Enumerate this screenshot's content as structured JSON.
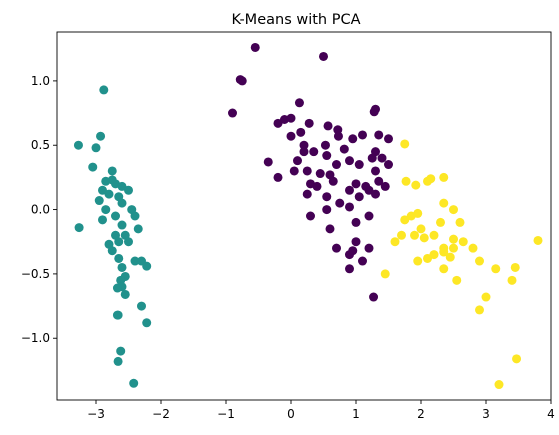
{
  "chart_data": {
    "type": "scatter",
    "title": "K-Means with PCA",
    "xlabel": "",
    "ylabel": "",
    "xlim": [
      -3.6,
      4.0
    ],
    "ylim": [
      -1.48,
      1.38
    ],
    "grid": false,
    "legend": "none",
    "x_ticks": [
      {
        "value": -3,
        "label": "−3"
      },
      {
        "value": -2,
        "label": "−2"
      },
      {
        "value": -1,
        "label": "−1"
      },
      {
        "value": 0,
        "label": "0"
      },
      {
        "value": 1,
        "label": "1"
      },
      {
        "value": 2,
        "label": "2"
      },
      {
        "value": 3,
        "label": "3"
      },
      {
        "value": 4,
        "label": "4"
      }
    ],
    "y_ticks": [
      {
        "value": -1.0,
        "label": "−1.0"
      },
      {
        "value": -0.5,
        "label": "−0.5"
      },
      {
        "value": 0.0,
        "label": "0.0"
      },
      {
        "value": 0.5,
        "label": "0.5"
      },
      {
        "value": 1.0,
        "label": "1.0"
      }
    ],
    "series": [
      {
        "color": "#440154",
        "points": [
          [
            -0.55,
            1.26
          ],
          [
            -0.78,
            1.01
          ],
          [
            -0.75,
            1.0
          ],
          [
            0.5,
            1.19
          ],
          [
            -0.9,
            0.75
          ],
          [
            0.13,
            0.83
          ],
          [
            -0.2,
            0.67
          ],
          [
            -0.1,
            0.7
          ],
          [
            0.0,
            0.71
          ],
          [
            0.28,
            0.67
          ],
          [
            0.57,
            0.65
          ],
          [
            0.72,
            0.62
          ],
          [
            0.73,
            0.57
          ],
          [
            1.3,
            0.78
          ],
          [
            1.28,
            0.76
          ],
          [
            0.95,
            0.55
          ],
          [
            1.1,
            0.58
          ],
          [
            1.35,
            0.58
          ],
          [
            1.5,
            0.55
          ],
          [
            0.0,
            0.57
          ],
          [
            0.15,
            0.6
          ],
          [
            0.2,
            0.5
          ],
          [
            0.53,
            0.5
          ],
          [
            0.82,
            0.47
          ],
          [
            0.35,
            0.45
          ],
          [
            0.55,
            0.42
          ],
          [
            -0.35,
            0.37
          ],
          [
            0.1,
            0.38
          ],
          [
            0.2,
            0.45
          ],
          [
            1.3,
            0.45
          ],
          [
            1.4,
            0.4
          ],
          [
            0.7,
            0.35
          ],
          [
            0.9,
            0.38
          ],
          [
            1.05,
            0.35
          ],
          [
            1.25,
            0.4
          ],
          [
            0.05,
            0.3
          ],
          [
            0.25,
            0.3
          ],
          [
            0.45,
            0.28
          ],
          [
            0.6,
            0.27
          ],
          [
            1.3,
            0.3
          ],
          [
            1.5,
            0.35
          ],
          [
            -0.2,
            0.25
          ],
          [
            0.3,
            0.2
          ],
          [
            0.4,
            0.18
          ],
          [
            0.65,
            0.22
          ],
          [
            0.9,
            0.15
          ],
          [
            1.0,
            0.2
          ],
          [
            1.2,
            0.15
          ],
          [
            1.35,
            0.22
          ],
          [
            1.45,
            0.18
          ],
          [
            0.25,
            0.12
          ],
          [
            0.55,
            0.1
          ],
          [
            0.75,
            0.05
          ],
          [
            1.05,
            0.1
          ],
          [
            1.3,
            0.12
          ],
          [
            1.15,
            0.18
          ],
          [
            0.3,
            -0.05
          ],
          [
            0.55,
            0.0
          ],
          [
            0.9,
            0.02
          ],
          [
            1.0,
            -0.1
          ],
          [
            1.2,
            -0.05
          ],
          [
            0.6,
            -0.15
          ],
          [
            1.0,
            -0.25
          ],
          [
            0.7,
            -0.3
          ],
          [
            1.2,
            -0.3
          ],
          [
            0.9,
            -0.35
          ],
          [
            1.1,
            -0.4
          ],
          [
            0.95,
            -0.32
          ],
          [
            0.9,
            -0.46
          ],
          [
            1.27,
            -0.68
          ]
        ]
      },
      {
        "color": "#21918c",
        "points": [
          [
            -2.88,
            0.93
          ],
          [
            -2.93,
            0.57
          ],
          [
            -3.27,
            0.5
          ],
          [
            -3.0,
            0.48
          ],
          [
            -3.05,
            0.33
          ],
          [
            -2.75,
            0.3
          ],
          [
            -2.85,
            0.22
          ],
          [
            -2.75,
            0.23
          ],
          [
            -2.7,
            0.2
          ],
          [
            -2.6,
            0.18
          ],
          [
            -2.9,
            0.15
          ],
          [
            -2.8,
            0.12
          ],
          [
            -2.5,
            0.15
          ],
          [
            -2.65,
            0.1
          ],
          [
            -2.95,
            0.07
          ],
          [
            -2.6,
            0.05
          ],
          [
            -2.45,
            0.0
          ],
          [
            -2.85,
            0.0
          ],
          [
            -2.7,
            -0.05
          ],
          [
            -2.4,
            -0.05
          ],
          [
            -2.9,
            -0.08
          ],
          [
            -2.6,
            -0.12
          ],
          [
            -2.35,
            -0.15
          ],
          [
            -3.26,
            -0.14
          ],
          [
            -2.7,
            -0.2
          ],
          [
            -2.55,
            -0.2
          ],
          [
            -2.5,
            -0.25
          ],
          [
            -2.65,
            -0.25
          ],
          [
            -2.8,
            -0.27
          ],
          [
            -2.75,
            -0.32
          ],
          [
            -2.65,
            -0.38
          ],
          [
            -2.4,
            -0.4
          ],
          [
            -2.3,
            -0.4
          ],
          [
            -2.22,
            -0.44
          ],
          [
            -2.6,
            -0.45
          ],
          [
            -2.55,
            -0.52
          ],
          [
            -2.62,
            -0.55
          ],
          [
            -2.6,
            -0.6
          ],
          [
            -2.67,
            -0.61
          ],
          [
            -2.55,
            -0.66
          ],
          [
            -2.3,
            -0.75
          ],
          [
            -2.66,
            -0.82
          ],
          [
            -2.67,
            -0.82
          ],
          [
            -2.22,
            -0.88
          ],
          [
            -2.62,
            -1.1
          ],
          [
            -2.66,
            -1.18
          ],
          [
            -2.42,
            -1.35
          ]
        ]
      },
      {
        "color": "#fde725",
        "points": [
          [
            1.75,
            0.51
          ],
          [
            1.77,
            0.22
          ],
          [
            1.92,
            0.19
          ],
          [
            2.1,
            0.22
          ],
          [
            2.15,
            0.24
          ],
          [
            2.35,
            0.25
          ],
          [
            2.35,
            0.05
          ],
          [
            2.5,
            0.0
          ],
          [
            1.85,
            -0.05
          ],
          [
            1.95,
            -0.03
          ],
          [
            1.75,
            -0.08
          ],
          [
            2.3,
            -0.1
          ],
          [
            2.6,
            -0.1
          ],
          [
            2.0,
            -0.15
          ],
          [
            2.2,
            -0.2
          ],
          [
            1.9,
            -0.2
          ],
          [
            2.05,
            -0.22
          ],
          [
            2.5,
            -0.23
          ],
          [
            1.6,
            -0.25
          ],
          [
            1.7,
            -0.2
          ],
          [
            2.65,
            -0.25
          ],
          [
            2.35,
            -0.3
          ],
          [
            2.5,
            -0.3
          ],
          [
            2.8,
            -0.3
          ],
          [
            2.35,
            -0.33
          ],
          [
            2.2,
            -0.35
          ],
          [
            2.45,
            -0.37
          ],
          [
            2.1,
            -0.38
          ],
          [
            1.95,
            -0.4
          ],
          [
            2.9,
            -0.4
          ],
          [
            3.45,
            -0.45
          ],
          [
            3.15,
            -0.46
          ],
          [
            2.35,
            -0.46
          ],
          [
            1.45,
            -0.5
          ],
          [
            2.55,
            -0.55
          ],
          [
            3.4,
            -0.55
          ],
          [
            3.0,
            -0.68
          ],
          [
            2.9,
            -0.78
          ],
          [
            3.8,
            -0.24
          ],
          [
            3.47,
            -1.16
          ],
          [
            3.2,
            -1.36
          ]
        ]
      }
    ]
  }
}
